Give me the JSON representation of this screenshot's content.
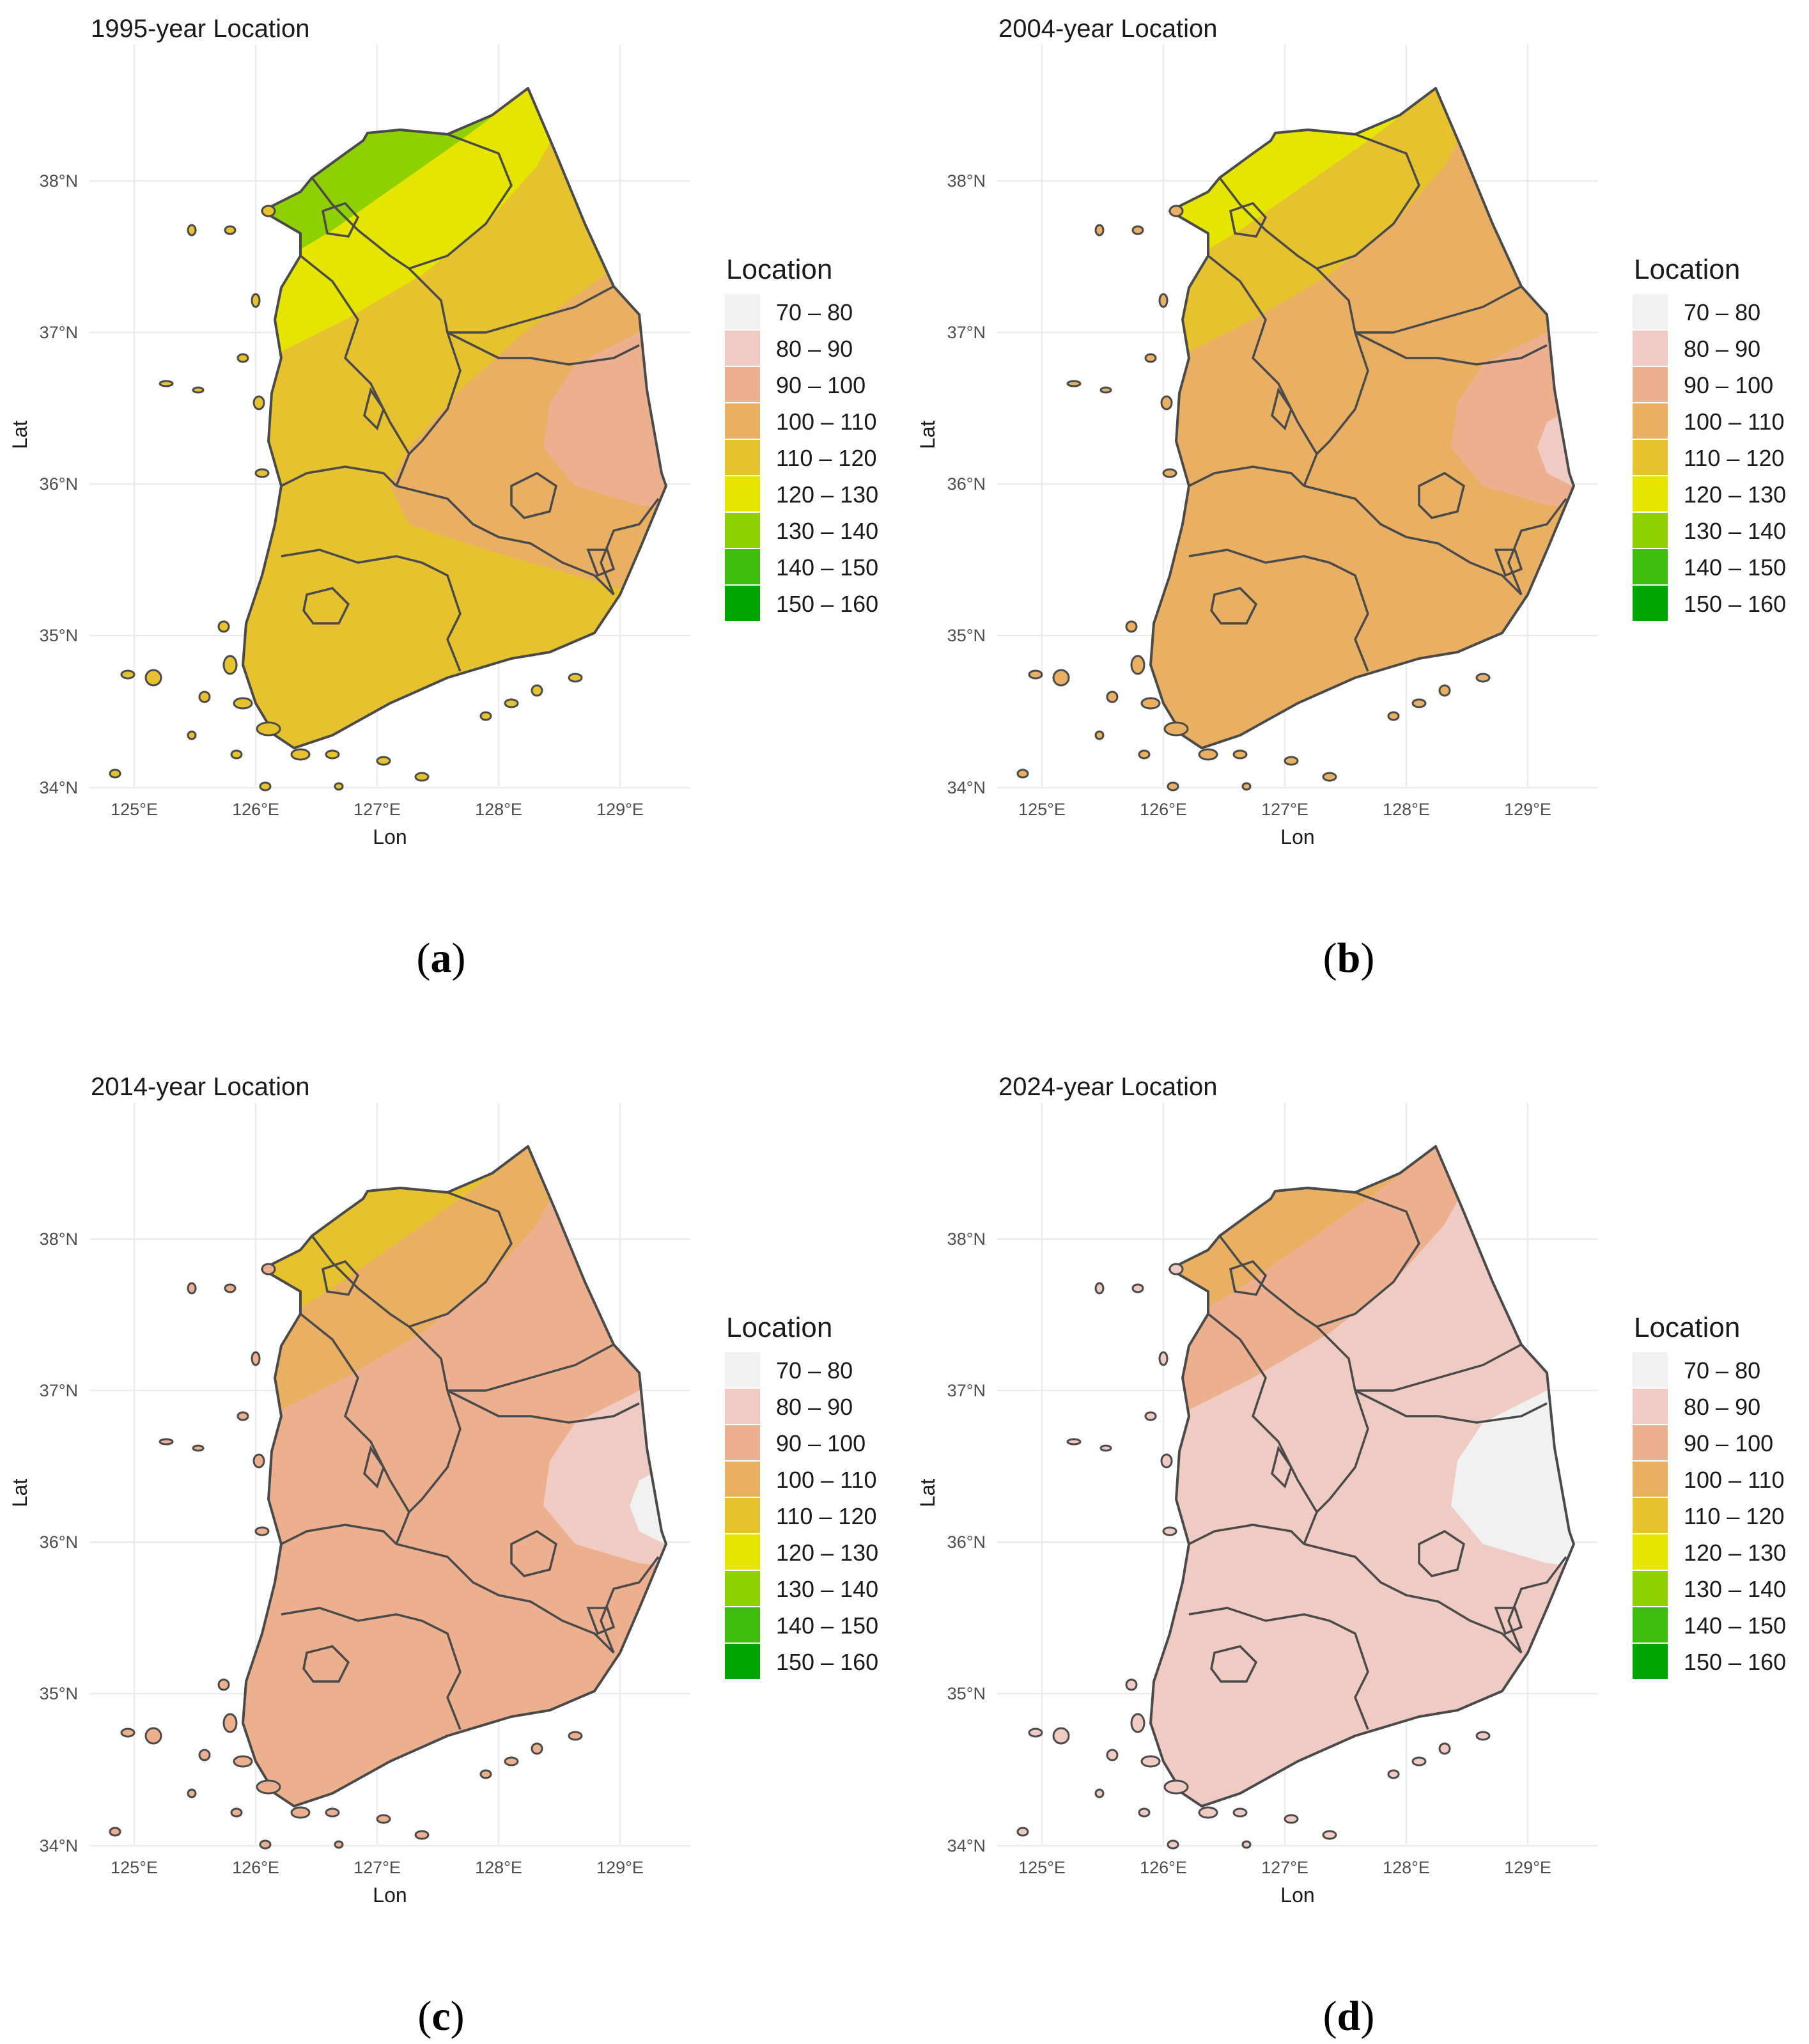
{
  "figure": {
    "legend": {
      "title": "Location",
      "classes": [
        {
          "label": "70 – 80",
          "color": "#f1f1f1"
        },
        {
          "label": "80 – 90",
          "color": "#efcbc3"
        },
        {
          "label": "90 – 100",
          "color": "#edb08f"
        },
        {
          "label": "100 – 110",
          "color": "#e9af62"
        },
        {
          "label": "110 – 120",
          "color": "#e6c22e"
        },
        {
          "label": "120 – 130",
          "color": "#e5e500"
        },
        {
          "label": "130 – 140",
          "color": "#8fd000"
        },
        {
          "label": "140 – 150",
          "color": "#3fbd0d"
        },
        {
          "label": "150 – 160",
          "color": "#00a600"
        }
      ]
    },
    "axes": {
      "xlabel": "Lon",
      "ylabel": "Lat",
      "xticks": [
        "125°E",
        "126°E",
        "127°E",
        "128°E",
        "129°E"
      ],
      "yticks": [
        "34°N",
        "35°N",
        "36°N",
        "37°N",
        "38°N"
      ]
    },
    "panels": [
      {
        "title": "1995-year Location",
        "caption": "a",
        "fills": {
          "base": 4,
          "a": 5,
          "b": 6,
          "c": 3,
          "d": 2,
          "e": 2
        }
      },
      {
        "title": "2004-year Location",
        "caption": "b",
        "fills": {
          "base": 3,
          "a": 4,
          "b": 5,
          "c": 3,
          "d": 2,
          "e": 1
        }
      },
      {
        "title": "2014-year Location",
        "caption": "c",
        "fills": {
          "base": 2,
          "a": 3,
          "b": 4,
          "c": 2,
          "d": 1,
          "e": 0
        }
      },
      {
        "title": "2024-year Location",
        "caption": "d",
        "fills": {
          "base": 1,
          "a": 2,
          "b": 3,
          "c": 1,
          "d": 0,
          "e": 0
        }
      }
    ]
  }
}
